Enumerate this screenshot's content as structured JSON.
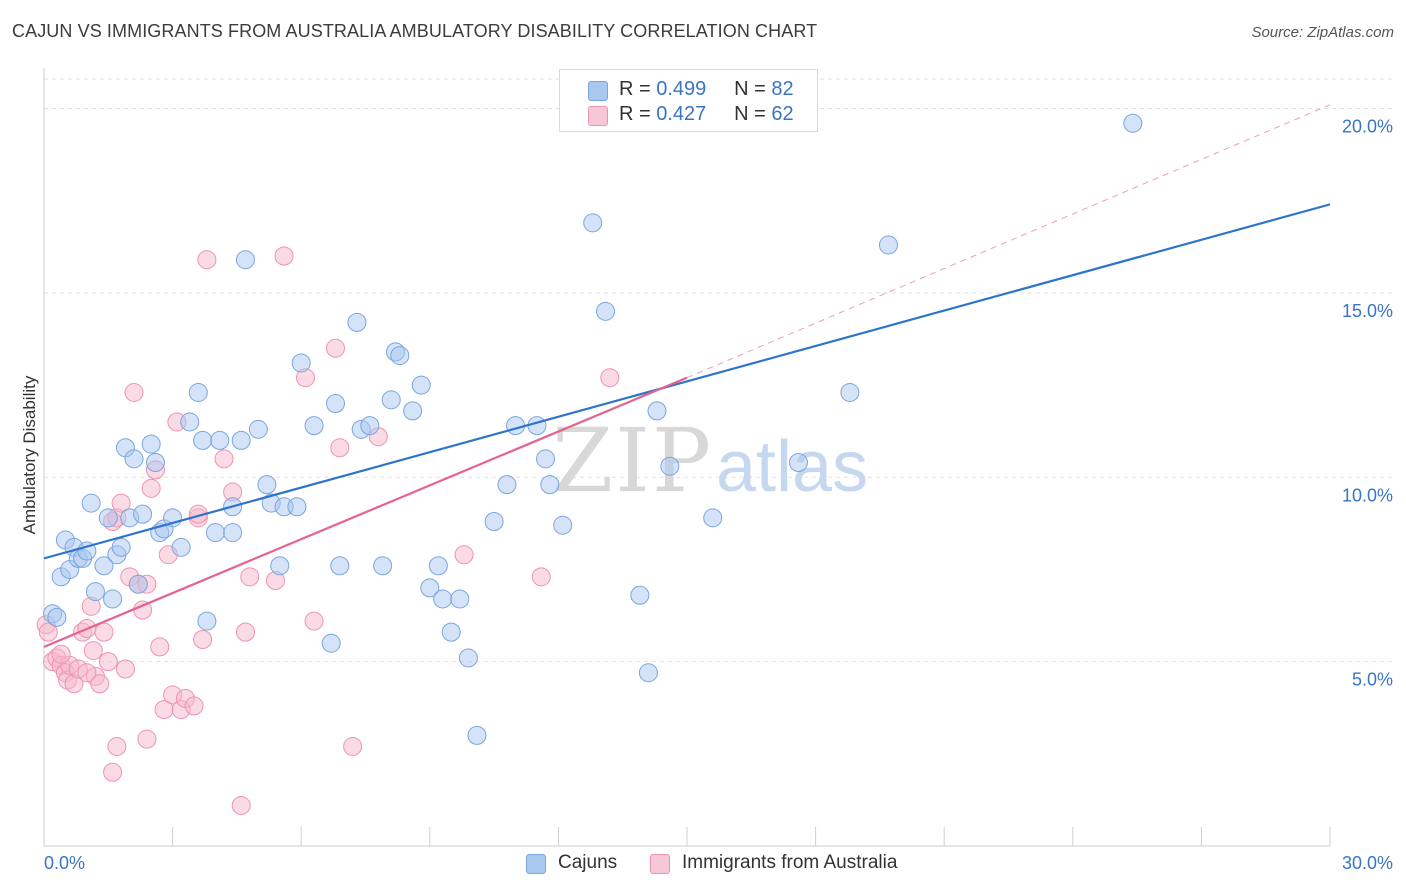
{
  "title": "CAJUN VS IMMIGRANTS FROM AUSTRALIA AMBULATORY DISABILITY CORRELATION CHART",
  "source": "Source: ZipAtlas.com",
  "watermark": {
    "zip": "ZIP",
    "atlas": "atlas"
  },
  "legend": {
    "cajuns": {
      "r_label": "R =",
      "r_value": "0.499",
      "n_label": "N =",
      "n_value": "82"
    },
    "immigrants": {
      "r_label": "R =",
      "r_value": "0.427",
      "n_label": "N =",
      "n_value": "62"
    }
  },
  "colors": {
    "cajuns_fill": "#a9c8f0",
    "cajuns_stroke": "#7aa6de",
    "cajuns_line": "#2e74cc",
    "imm_fill": "#f6b8cc",
    "imm_stroke": "#ee93b0",
    "imm_line": "#e4638f",
    "axis_text": "#3a74c4",
    "grid": "#e0e0e0"
  },
  "chart_data": {
    "type": "scatter",
    "title": "CAJUN VS IMMIGRANTS FROM AUSTRALIA AMBULATORY DISABILITY CORRELATION CHART",
    "xlabel": "",
    "ylabel": "Ambulatory Disability",
    "xlim": [
      0,
      30
    ],
    "ylim": [
      0,
      20.8
    ],
    "x_tick_labels": [
      "0.0%",
      "30.0%"
    ],
    "y_ticks": [
      5,
      10,
      15,
      20
    ],
    "y_tick_labels": [
      "5.0%",
      "10.0%",
      "15.0%",
      "20.0%"
    ],
    "grid": true,
    "legend_position": "top-center",
    "series": [
      {
        "name": "Cajuns",
        "points": [
          [
            0.2,
            6.3
          ],
          [
            0.3,
            6.2
          ],
          [
            0.4,
            7.3
          ],
          [
            0.5,
            8.3
          ],
          [
            0.6,
            7.5
          ],
          [
            0.7,
            8.1
          ],
          [
            0.8,
            7.8
          ],
          [
            0.9,
            7.8
          ],
          [
            1.0,
            8.0
          ],
          [
            1.1,
            9.3
          ],
          [
            1.4,
            7.6
          ],
          [
            1.5,
            8.9
          ],
          [
            1.6,
            6.7
          ],
          [
            1.7,
            7.9
          ],
          [
            1.8,
            8.1
          ],
          [
            1.2,
            6.9
          ],
          [
            1.9,
            10.8
          ],
          [
            2.0,
            8.9
          ],
          [
            2.1,
            10.5
          ],
          [
            2.2,
            7.1
          ],
          [
            2.3,
            9.0
          ],
          [
            2.5,
            10.9
          ],
          [
            2.6,
            10.4
          ],
          [
            2.7,
            8.5
          ],
          [
            2.8,
            8.6
          ],
          [
            3.0,
            8.9
          ],
          [
            3.2,
            8.1
          ],
          [
            3.4,
            11.5
          ],
          [
            3.6,
            12.3
          ],
          [
            3.7,
            11.0
          ],
          [
            3.8,
            6.1
          ],
          [
            4.0,
            8.5
          ],
          [
            4.1,
            11.0
          ],
          [
            4.4,
            9.2
          ],
          [
            4.6,
            11.0
          ],
          [
            4.7,
            15.9
          ],
          [
            5.0,
            11.3
          ],
          [
            5.2,
            9.8
          ],
          [
            5.3,
            9.3
          ],
          [
            5.5,
            7.6
          ],
          [
            5.6,
            9.2
          ],
          [
            5.9,
            9.2
          ],
          [
            6.0,
            13.1
          ],
          [
            6.3,
            11.4
          ],
          [
            6.7,
            5.5
          ],
          [
            6.8,
            12.0
          ],
          [
            6.9,
            7.6
          ],
          [
            7.3,
            14.2
          ],
          [
            7.4,
            11.3
          ],
          [
            7.6,
            11.4
          ],
          [
            8.1,
            12.1
          ],
          [
            8.2,
            13.4
          ],
          [
            8.3,
            13.3
          ],
          [
            8.6,
            11.8
          ],
          [
            8.8,
            12.5
          ],
          [
            9.0,
            7.0
          ],
          [
            9.2,
            7.6
          ],
          [
            9.3,
            6.7
          ],
          [
            9.5,
            5.8
          ],
          [
            9.7,
            6.7
          ],
          [
            9.9,
            5.1
          ],
          [
            10.1,
            3.0
          ],
          [
            10.5,
            8.8
          ],
          [
            10.8,
            9.8
          ],
          [
            11.0,
            11.4
          ],
          [
            11.8,
            9.8
          ],
          [
            11.5,
            11.4
          ],
          [
            11.7,
            10.5
          ],
          [
            12.1,
            8.7
          ],
          [
            12.8,
            16.9
          ],
          [
            13.1,
            14.5
          ],
          [
            13.9,
            6.8
          ],
          [
            14.1,
            4.7
          ],
          [
            14.3,
            11.8
          ],
          [
            14.6,
            10.3
          ],
          [
            15.6,
            8.9
          ],
          [
            17.6,
            10.4
          ],
          [
            18.8,
            12.3
          ],
          [
            19.7,
            16.3
          ],
          [
            25.4,
            19.6
          ],
          [
            7.9,
            7.6
          ],
          [
            4.4,
            8.5
          ]
        ],
        "trendline": {
          "x": [
            0,
            30
          ],
          "y": [
            7.8,
            17.4
          ]
        }
      },
      {
        "name": "Immigrants from Australia",
        "points": [
          [
            0.05,
            6.0
          ],
          [
            0.1,
            5.8
          ],
          [
            0.2,
            5.0
          ],
          [
            0.3,
            5.1
          ],
          [
            0.4,
            4.9
          ],
          [
            0.5,
            4.7
          ],
          [
            0.55,
            4.5
          ],
          [
            0.6,
            4.9
          ],
          [
            0.7,
            4.4
          ],
          [
            0.8,
            4.8
          ],
          [
            0.9,
            5.8
          ],
          [
            1.0,
            5.9
          ],
          [
            1.1,
            6.5
          ],
          [
            1.15,
            5.3
          ],
          [
            1.2,
            4.6
          ],
          [
            1.3,
            4.4
          ],
          [
            1.4,
            5.8
          ],
          [
            1.5,
            5.0
          ],
          [
            1.6,
            8.8
          ],
          [
            1.7,
            8.9
          ],
          [
            1.8,
            9.3
          ],
          [
            1.9,
            4.8
          ],
          [
            2.0,
            7.3
          ],
          [
            2.1,
            12.3
          ],
          [
            2.2,
            7.1
          ],
          [
            2.3,
            6.4
          ],
          [
            2.4,
            7.1
          ],
          [
            2.5,
            9.7
          ],
          [
            2.6,
            10.2
          ],
          [
            2.7,
            5.4
          ],
          [
            2.8,
            3.7
          ],
          [
            2.9,
            7.9
          ],
          [
            3.0,
            4.1
          ],
          [
            3.1,
            11.5
          ],
          [
            3.2,
            3.7
          ],
          [
            3.3,
            4.0
          ],
          [
            3.5,
            3.8
          ],
          [
            3.6,
            8.9
          ],
          [
            3.7,
            5.6
          ],
          [
            3.8,
            15.9
          ],
          [
            4.2,
            10.5
          ],
          [
            4.4,
            9.6
          ],
          [
            4.6,
            1.1
          ],
          [
            4.7,
            5.8
          ],
          [
            4.8,
            7.3
          ],
          [
            5.4,
            7.2
          ],
          [
            5.6,
            16.0
          ],
          [
            6.1,
            12.7
          ],
          [
            6.3,
            6.1
          ],
          [
            6.8,
            13.5
          ],
          [
            6.9,
            10.8
          ],
          [
            7.2,
            2.7
          ],
          [
            7.8,
            11.1
          ],
          [
            9.8,
            7.9
          ],
          [
            11.6,
            7.3
          ],
          [
            13.2,
            12.7
          ],
          [
            1.7,
            2.7
          ],
          [
            1.6,
            2.0
          ],
          [
            2.4,
            2.9
          ],
          [
            1.0,
            4.7
          ],
          [
            3.6,
            9.0
          ],
          [
            0.4,
            5.2
          ]
        ],
        "trendline": {
          "x": [
            0,
            15.0
          ],
          "y": [
            5.4,
            12.7
          ]
        },
        "trendline_extension": {
          "x": [
            15.0,
            30
          ],
          "y": [
            12.7,
            20.1
          ]
        }
      }
    ]
  },
  "bottom_legend": {
    "cajuns": "Cajuns",
    "immigrants": "Immigrants from Australia"
  }
}
